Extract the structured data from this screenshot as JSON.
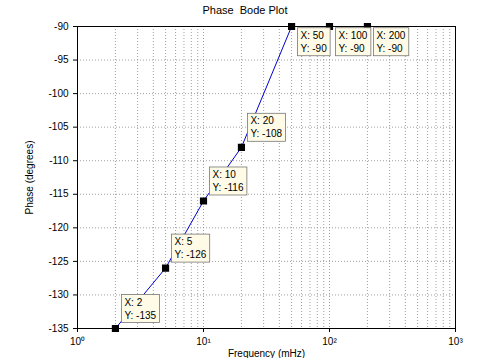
{
  "chart_data": {
    "type": "line",
    "title": "Phase  Bode Plot",
    "x_label": "Frequency (mHz)",
    "y_label": "Phase (degrees)",
    "x": [
      2,
      5,
      10,
      20,
      50,
      100,
      200
    ],
    "values": [
      -135,
      -126,
      -116,
      -108,
      -90,
      -90,
      -90
    ],
    "data_labels": true,
    "value_labels": [
      "X: 2\nY: -135",
      "X: 5\nY: -126",
      "X: 10\nY: -116",
      "X: 20\nY: -108",
      "X: 50\nY: -90",
      "X: 100\nY: -90",
      "X: 200\nY: -90"
    ],
    "color": "#0000cc",
    "marker": "square",
    "log": "x",
    "grid": true,
    "xlim": [
      1,
      1000
    ],
    "xticks": [
      {
        "value": 1,
        "label": "10⁰"
      },
      {
        "value": 10,
        "label": "10¹"
      },
      {
        "value": 100,
        "label": "10²"
      },
      {
        "value": 1000,
        "label": "10³"
      }
    ],
    "ylim": [
      -135,
      -90
    ],
    "yticks": [
      -135,
      -130,
      -125,
      -120,
      -115,
      -110,
      -105,
      -100,
      -95,
      -90
    ]
  }
}
